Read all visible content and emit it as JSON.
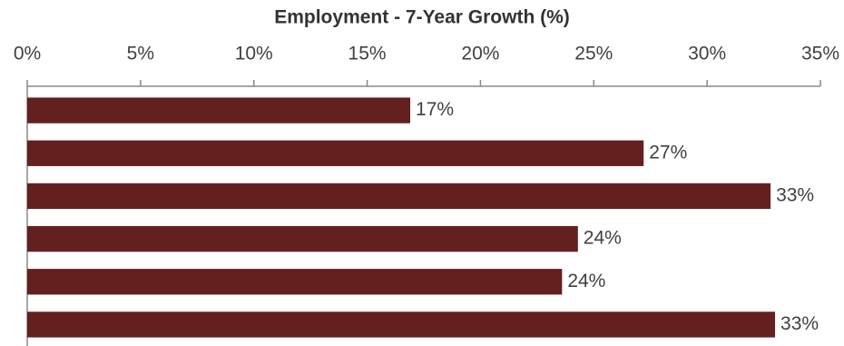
{
  "chart_data": {
    "type": "bar",
    "orientation": "horizontal",
    "title": "Employment - 7-Year Growth (%)",
    "categories": [
      null,
      null,
      null,
      null,
      null,
      null
    ],
    "values": [
      16.9,
      27.2,
      32.8,
      24.3,
      23.6,
      33.0
    ],
    "value_labels": [
      "17%",
      "27%",
      "33%",
      "24%",
      "24%",
      "33%"
    ],
    "color": "#63201f",
    "xlim": [
      0,
      35
    ],
    "xticks": [
      {
        "value": 0,
        "label": "0%"
      },
      {
        "value": 5,
        "label": "5%"
      },
      {
        "value": 10,
        "label": "10%"
      },
      {
        "value": 15,
        "label": "15%"
      },
      {
        "value": 20,
        "label": "20%"
      },
      {
        "value": 25,
        "label": "25%"
      },
      {
        "value": 30,
        "label": "30%"
      },
      {
        "value": 35,
        "label": "35%"
      }
    ],
    "grid": false
  }
}
